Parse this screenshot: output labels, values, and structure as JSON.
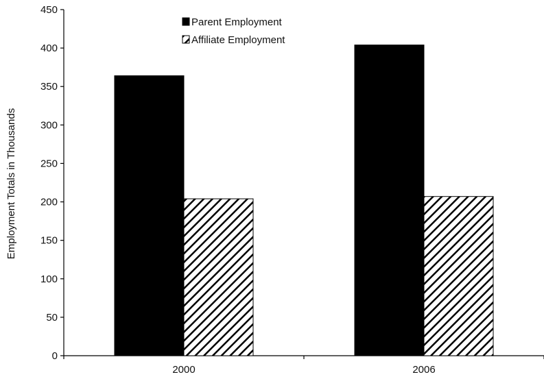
{
  "chart_data": {
    "type": "bar",
    "title": "",
    "xlabel": "",
    "ylabel": "Employment Totals in Thousands",
    "categories": [
      "2000",
      "2006"
    ],
    "series": [
      {
        "name": "Parent Employment",
        "values": [
          364,
          404
        ],
        "fill": "solid",
        "color": "#000000"
      },
      {
        "name": "Affiliate Employment",
        "values": [
          204,
          207
        ],
        "fill": "hatched",
        "color": "#000000"
      }
    ],
    "ylim": [
      0,
      450
    ],
    "yticks": [
      0,
      50,
      100,
      150,
      200,
      250,
      300,
      350,
      400,
      450
    ],
    "grid": false,
    "legend_position": "top-center"
  }
}
